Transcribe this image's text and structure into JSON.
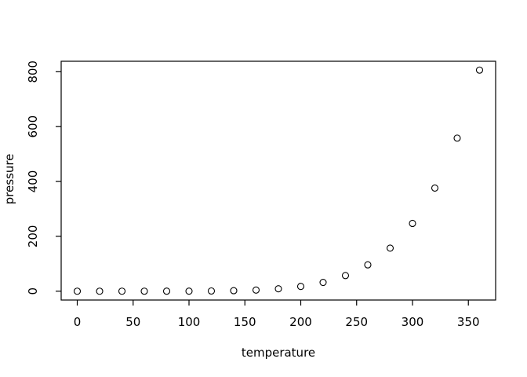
{
  "chart_data": {
    "type": "scatter",
    "xlabel": "temperature",
    "ylabel": "pressure",
    "x": [
      0,
      20,
      40,
      60,
      80,
      100,
      120,
      140,
      160,
      180,
      200,
      220,
      240,
      260,
      280,
      300,
      320,
      340,
      360
    ],
    "y": [
      0.0002,
      0.0012,
      0.006,
      0.03,
      0.09,
      0.27,
      0.75,
      1.85,
      4.2,
      8.8,
      17.3,
      32.1,
      57,
      96,
      157,
      247,
      376,
      558,
      806
    ],
    "x_ticks": [
      0,
      50,
      100,
      150,
      200,
      250,
      300,
      350
    ],
    "y_ticks": [
      0,
      200,
      400,
      600,
      800
    ],
    "xlim": [
      -14.4,
      374.4
    ],
    "ylim": [
      -32.2,
      838.2
    ],
    "grid": false,
    "legend": "none",
    "marker": "open-circle",
    "colors": {
      "background": "#ffffff",
      "axis": "#000000",
      "text": "#000000",
      "points": "#000000"
    }
  }
}
